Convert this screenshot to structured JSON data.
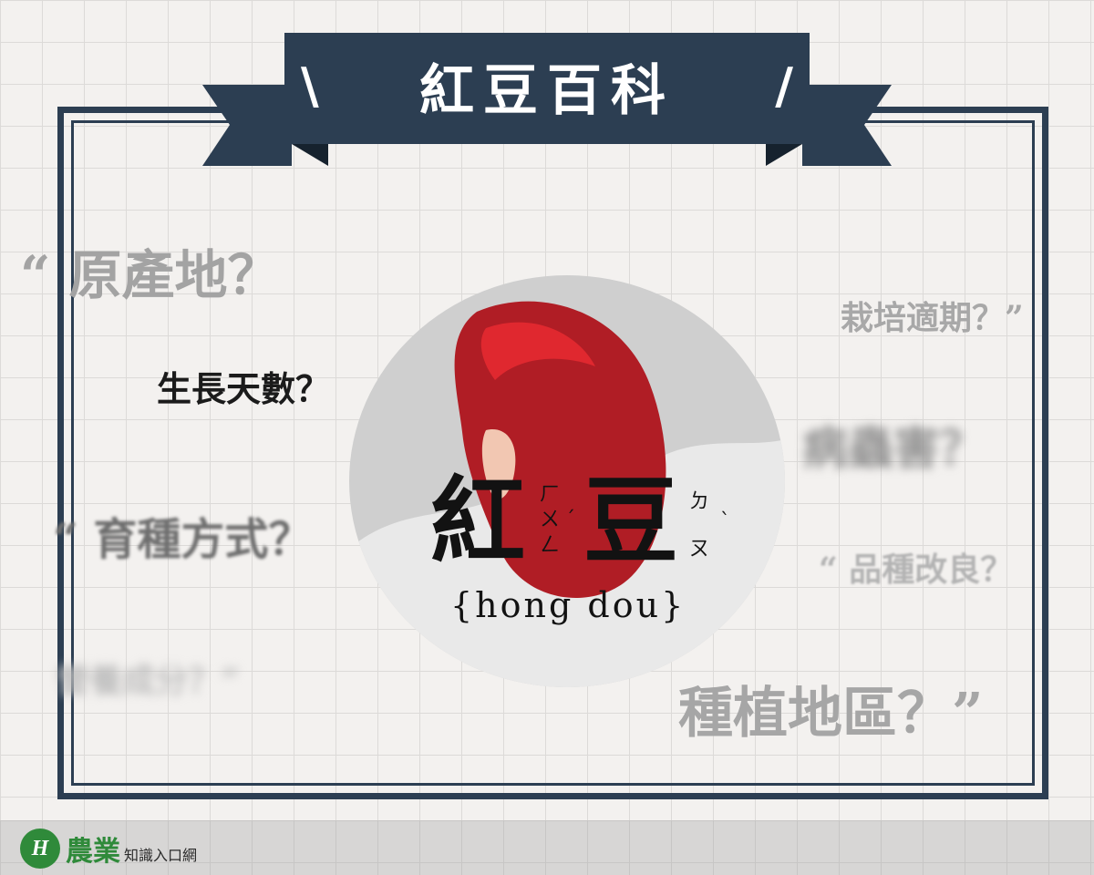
{
  "header": {
    "left_slash": "\\",
    "title": "紅豆百科",
    "right_slash": "/"
  },
  "questions": [
    {
      "text": "“ 原產地？"
    },
    {
      "text": "栽培適期？”"
    },
    {
      "text": "生長天數？"
    },
    {
      "text": "病蟲害？"
    },
    {
      "text": "“ 育種方式？"
    },
    {
      "text": "“ 品種改良？"
    },
    {
      "text": "營養成分？”"
    },
    {
      "text": "種植地區？”"
    }
  ],
  "center": {
    "char1": "紅",
    "char2": "豆",
    "char1_zhuyin": [
      "ㄏ",
      "ㄨ",
      "ㄥ"
    ],
    "char1_tone": "ˊ",
    "char2_zhuyin": [
      "ㄉ",
      "ㄡ"
    ],
    "char2_tone": "ˋ",
    "pinyin": "{hong dou}"
  },
  "logo": {
    "badge": "H",
    "main": "農業",
    "sub": "知識入口網"
  },
  "colors": {
    "navy": "#2c3e52",
    "bean_red": "#b01d25",
    "background": "#f3f1ef"
  }
}
